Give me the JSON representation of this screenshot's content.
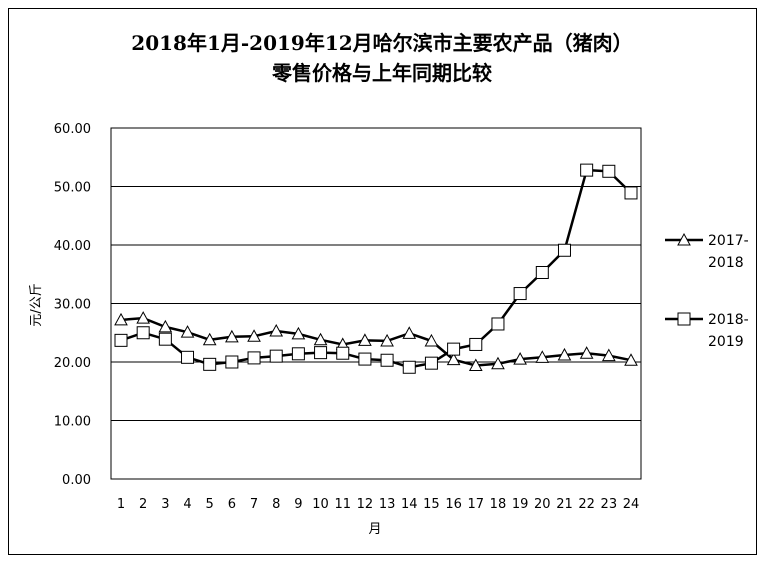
{
  "chart_data": {
    "type": "line",
    "title_line1": "2018年1月-2019年12月哈尔滨市主要农产品（猪肉）",
    "title_line2": "零售价格与上年同期比较",
    "xlabel": "月",
    "ylabel": "元/公斤",
    "ylim": [
      0,
      60
    ],
    "yticks": [
      "0.00",
      "10.00",
      "20.00",
      "30.00",
      "40.00",
      "50.00",
      "60.00"
    ],
    "categories": [
      "1",
      "2",
      "3",
      "4",
      "5",
      "6",
      "7",
      "8",
      "9",
      "10",
      "11",
      "12",
      "13",
      "14",
      "15",
      "16",
      "17",
      "18",
      "19",
      "20",
      "21",
      "22",
      "23",
      "24"
    ],
    "grid": true,
    "legend_position": "right",
    "series": [
      {
        "name_line1": "2017-",
        "name_line2": "2018",
        "marker": "triangle",
        "values": [
          27.2,
          27.5,
          26.0,
          25.1,
          23.8,
          24.3,
          24.4,
          25.3,
          24.8,
          23.8,
          23.0,
          23.7,
          23.6,
          24.9,
          23.6,
          20.4,
          19.4,
          19.7,
          20.5,
          20.8,
          21.2,
          21.5,
          21.1,
          20.3
        ]
      },
      {
        "name_line1": "2018-",
        "name_line2": "2019",
        "marker": "square",
        "values": [
          23.7,
          25.0,
          23.9,
          20.8,
          19.6,
          20.0,
          20.7,
          21.0,
          21.4,
          21.6,
          21.5,
          20.5,
          20.3,
          19.1,
          19.8,
          22.2,
          23.0,
          26.5,
          31.7,
          35.3,
          39.1,
          52.8,
          52.6,
          48.9
        ]
      }
    ]
  }
}
